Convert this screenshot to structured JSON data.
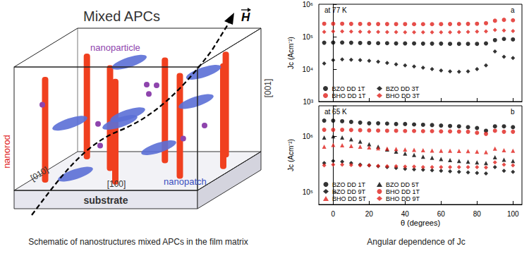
{
  "diagram": {
    "title": "Mixed APCs",
    "field": "H",
    "labels": {
      "nanoparticle": "nanoparticle",
      "nanorod": "nanorod",
      "nanopatch": "nanopatch",
      "axis_001": "[001]",
      "axis_010": "[010]",
      "axis_100": "[100]",
      "substrate": "substrate"
    },
    "caption": "Schematic of nanostructures mixed APCs in the film matrix"
  },
  "charts_caption": "Angular dependence of Jc",
  "chart_data": [
    {
      "type": "scatter",
      "title": "at 77 K",
      "annotations": [
        "a"
      ],
      "ylabel": "Jc (Acm⁻²)",
      "log": "y",
      "grid": false,
      "legend": "lower left",
      "tick_labels": "y",
      "x": [
        -5,
        0,
        5,
        10,
        15,
        20,
        25,
        30,
        35,
        40,
        45,
        50,
        55,
        60,
        65,
        70,
        75,
        80,
        85,
        90,
        95,
        100
      ],
      "xlim": [
        -8,
        105
      ],
      "xticks": [
        0,
        20,
        40,
        60,
        80,
        100
      ],
      "ylim": [
        1000,
        1000000
      ],
      "yticks": [
        {
          "value": 1000,
          "label": "10³"
        },
        {
          "value": 10000,
          "label": "10⁴"
        },
        {
          "value": 100000,
          "label": "10⁵"
        },
        {
          "value": 1000000,
          "label": "10⁶"
        }
      ],
      "series": [
        {
          "name": "BZO DD 1T",
          "color": "#000000",
          "marker": "circle",
          "values": [
            65000,
            66000,
            66000,
            65000,
            64000,
            64000,
            63000,
            63000,
            62000,
            62000,
            62000,
            61000,
            61000,
            61000,
            60000,
            60000,
            60000,
            60000,
            62000,
            78000,
            85000,
            82000
          ]
        },
        {
          "name": "BZO DD 3T",
          "color": "#000000",
          "marker": "diamond",
          "values": [
            15000,
            19000,
            20000,
            19500,
            19000,
            18000,
            17000,
            15500,
            14000,
            13000,
            12000,
            11000,
            10000,
            9000,
            8500,
            8300,
            8500,
            10000,
            13000,
            35000,
            24000,
            22000
          ]
        },
        {
          "name": "BHO DD 1T",
          "color": "#e0201b",
          "marker": "circle",
          "values": [
            250000,
            250000,
            250000,
            248000,
            247000,
            246000,
            245000,
            245000,
            244000,
            244000,
            243000,
            243000,
            243000,
            244000,
            245000,
            246000,
            248000,
            250000,
            260000,
            310000,
            330000,
            320000
          ]
        },
        {
          "name": "BHO DD 3T",
          "color": "#e0201b",
          "marker": "diamond",
          "values": [
            140000,
            145000,
            145000,
            143000,
            142000,
            141000,
            140000,
            139000,
            138000,
            137000,
            137000,
            136000,
            136000,
            136000,
            137000,
            138000,
            140000,
            143000,
            145000,
            160000,
            155000,
            150000
          ]
        }
      ]
    },
    {
      "type": "scatter",
      "title": "at 65 K",
      "annotations": [
        "b"
      ],
      "xlabel": "θ (degrees)",
      "ylabel": "Jc (Acm⁻²)",
      "log": "y",
      "grid": false,
      "legend": "lower left",
      "x": [
        -5,
        0,
        5,
        10,
        15,
        20,
        25,
        30,
        35,
        40,
        45,
        50,
        55,
        60,
        65,
        70,
        75,
        80,
        85,
        90,
        95,
        100
      ],
      "xlim": [
        -8,
        105
      ],
      "xticks": [
        0,
        20,
        40,
        60,
        80,
        100
      ],
      "ylim": [
        60000,
        3500000
      ],
      "yticks": [
        {
          "value": 100000,
          "label": "10⁵"
        },
        {
          "value": 1000000,
          "label": "10⁶"
        }
      ],
      "series": [
        {
          "name": "BZO DD 1T",
          "color": "#000000",
          "marker": "circle",
          "values": [
            1900000,
            1900000,
            1850000,
            1800000,
            1750000,
            1700000,
            1700000,
            1680000,
            1650000,
            1650000,
            1620000,
            1600000,
            1580000,
            1550000,
            1520000,
            1500000,
            1450000,
            1400000,
            1250000,
            1500000,
            1500000,
            1450000
          ]
        },
        {
          "name": "BZO DD 5T",
          "color": "#000000",
          "marker": "triangle",
          "values": [
            950000,
            1000000,
            950000,
            880000,
            800000,
            720000,
            650000,
            580000,
            530000,
            490000,
            460000,
            430000,
            410000,
            390000,
            375000,
            360000,
            350000,
            340000,
            330000,
            420000,
            380000,
            360000
          ]
        },
        {
          "name": "BZO DD 9T",
          "color": "#000000",
          "marker": "diamond",
          "values": [
            330000,
            360000,
            350000,
            330000,
            310000,
            300000,
            290000,
            280000,
            270000,
            260000,
            255000,
            250000,
            245000,
            240000,
            235000,
            230000,
            225000,
            220000,
            215000,
            280000,
            240000,
            230000
          ]
        },
        {
          "name": "BHO DD 1T",
          "color": "#e0201b",
          "marker": "circle",
          "values": [
            1300000,
            1300000,
            1300000,
            1290000,
            1280000,
            1270000,
            1260000,
            1250000,
            1250000,
            1240000,
            1240000,
            1230000,
            1230000,
            1220000,
            1220000,
            1210000,
            1200000,
            1150000,
            1100000,
            1250000,
            1200000,
            1200000
          ]
        },
        {
          "name": "BHO DD 5T",
          "color": "#e0201b",
          "marker": "triangle",
          "values": [
            650000,
            700000,
            690000,
            670000,
            650000,
            630000,
            610000,
            600000,
            590000,
            580000,
            570000,
            560000,
            555000,
            550000,
            550000,
            545000,
            540000,
            530000,
            520000,
            600000,
            560000,
            550000
          ]
        },
        {
          "name": "BHO DD 9T",
          "color": "#e0201b",
          "marker": "diamond",
          "values": [
            300000,
            310000,
            310000,
            305000,
            300000,
            300000,
            295000,
            290000,
            290000,
            285000,
            285000,
            280000,
            280000,
            280000,
            280000,
            280000,
            280000,
            280000,
            275000,
            340000,
            310000,
            300000
          ]
        }
      ]
    }
  ]
}
